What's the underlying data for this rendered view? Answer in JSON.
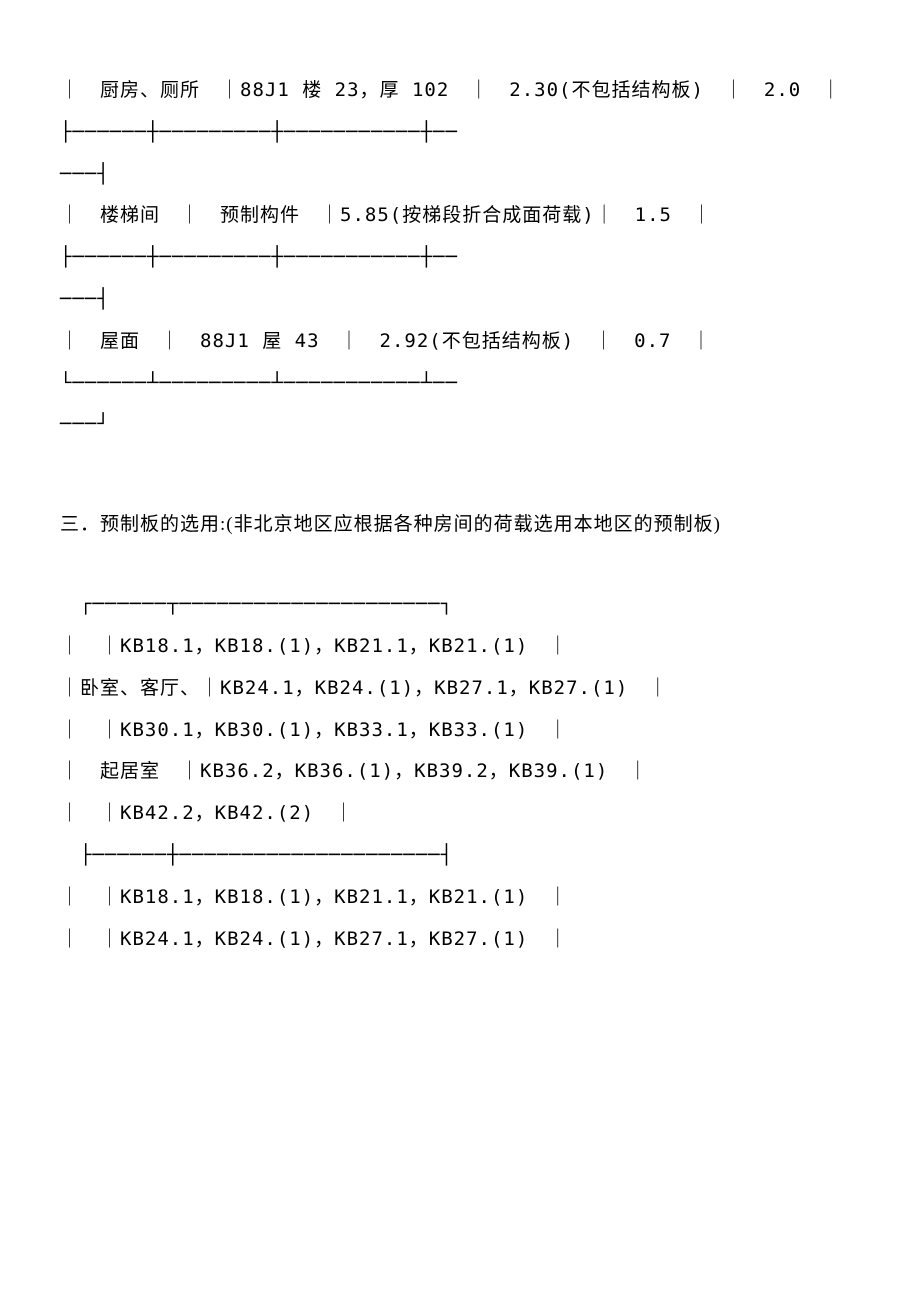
{
  "table1": {
    "row1": "｜　厨房、厕所　｜88J1 楼 23，厚 102　｜　2.30(不包括结构板)　｜　2.0　｜",
    "sep1a": "├──────┼─────────┼───────────┼──",
    "sep1b": "───┤",
    "row2": "｜　楼梯间　｜　预制构件　｜5.85(按梯段折合成面荷载)｜　1.5　｜",
    "sep2a": "├──────┼─────────┼───────────┼──",
    "sep2b": "───┤",
    "row3": "｜　屋面　｜　88J1 屋 43　｜　2.92(不包括结构板)　｜　0.7　｜",
    "sep3a": "└──────┴─────────┴───────────┴──",
    "sep3b": "───┘"
  },
  "section3": {
    "heading": "三．预制板的选用:(非北京地区应根据各种房间的荷载选用本地区的预制板)"
  },
  "table2": {
    "top": "　┌──────┬─────────────────────┐",
    "r1": "｜　｜KB18.1，KB18.(1)，KB21.1，KB21.(1)　｜",
    "r2": "｜卧室、客厅、｜KB24.1，KB24.(1)，KB27.1，KB27.(1)　｜",
    "r3": "｜　｜KB30.1，KB30.(1)，KB33.1，KB33.(1)　｜",
    "r4": "｜　起居室　｜KB36.2，KB36.(1)，KB39.2，KB39.(1)　｜",
    "r5": "｜　｜KB42.2，KB42.(2)　｜",
    "sep": "　├──────┼─────────────────────┤",
    "r6": "｜　｜KB18.1，KB18.(1)，KB21.1，KB21.(1)　｜",
    "r7": "｜　｜KB24.1，KB24.(1)，KB27.1，KB27.(1)　｜"
  }
}
